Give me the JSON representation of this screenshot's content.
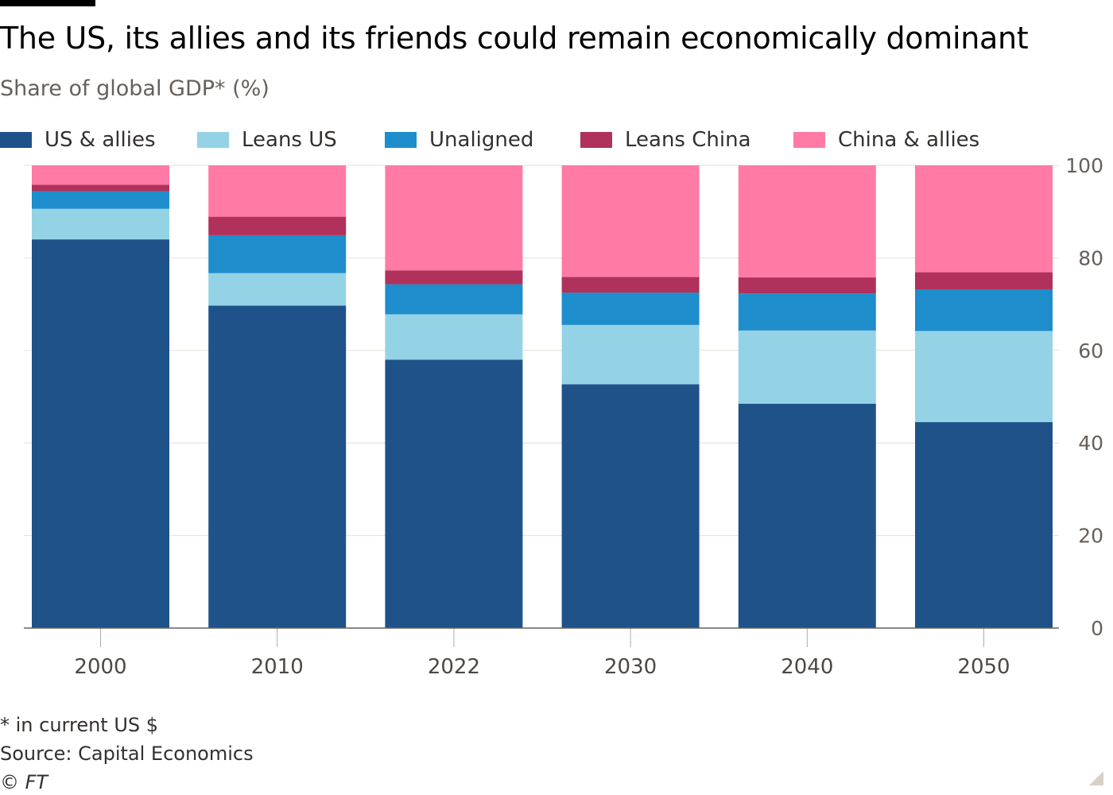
{
  "title": "The US, its allies and its friends could remain economically dominant",
  "subtitle": "Share of global GDP* (%)",
  "footnote": "* in current US $",
  "source": "Source: Capital Economics",
  "copyright": "© FT",
  "chart_data": {
    "type": "bar",
    "stacked": true,
    "title": "The US, its allies and its friends could remain economically dominant",
    "subtitle": "Share of global GDP* (%)",
    "xlabel": "",
    "ylabel": "",
    "ylim": [
      0,
      100
    ],
    "yticks": [
      0,
      20,
      40,
      60,
      80,
      100
    ],
    "yaxis_side": "right",
    "grid": true,
    "legend_position": "top",
    "categories": [
      "2000",
      "2010",
      "2022",
      "2030",
      "2040",
      "2050"
    ],
    "series": [
      {
        "name": "US & allies",
        "color": "#1f5289",
        "values": [
          84.0,
          69.7,
          58.0,
          52.7,
          48.5,
          44.5
        ]
      },
      {
        "name": "Leans US",
        "color": "#94d3e6",
        "values": [
          6.6,
          7.0,
          9.8,
          12.8,
          15.8,
          19.7
        ]
      },
      {
        "name": "Unaligned",
        "color": "#1e8dcc",
        "values": [
          3.8,
          8.2,
          6.5,
          7.0,
          8.0,
          9.0
        ]
      },
      {
        "name": "Leans China",
        "color": "#b0315b",
        "values": [
          1.4,
          4.0,
          3.0,
          3.4,
          3.5,
          3.7
        ]
      },
      {
        "name": "China & allies",
        "color": "#ff7aa5",
        "values": [
          4.2,
          11.1,
          22.7,
          24.1,
          24.2,
          23.1
        ]
      }
    ]
  }
}
